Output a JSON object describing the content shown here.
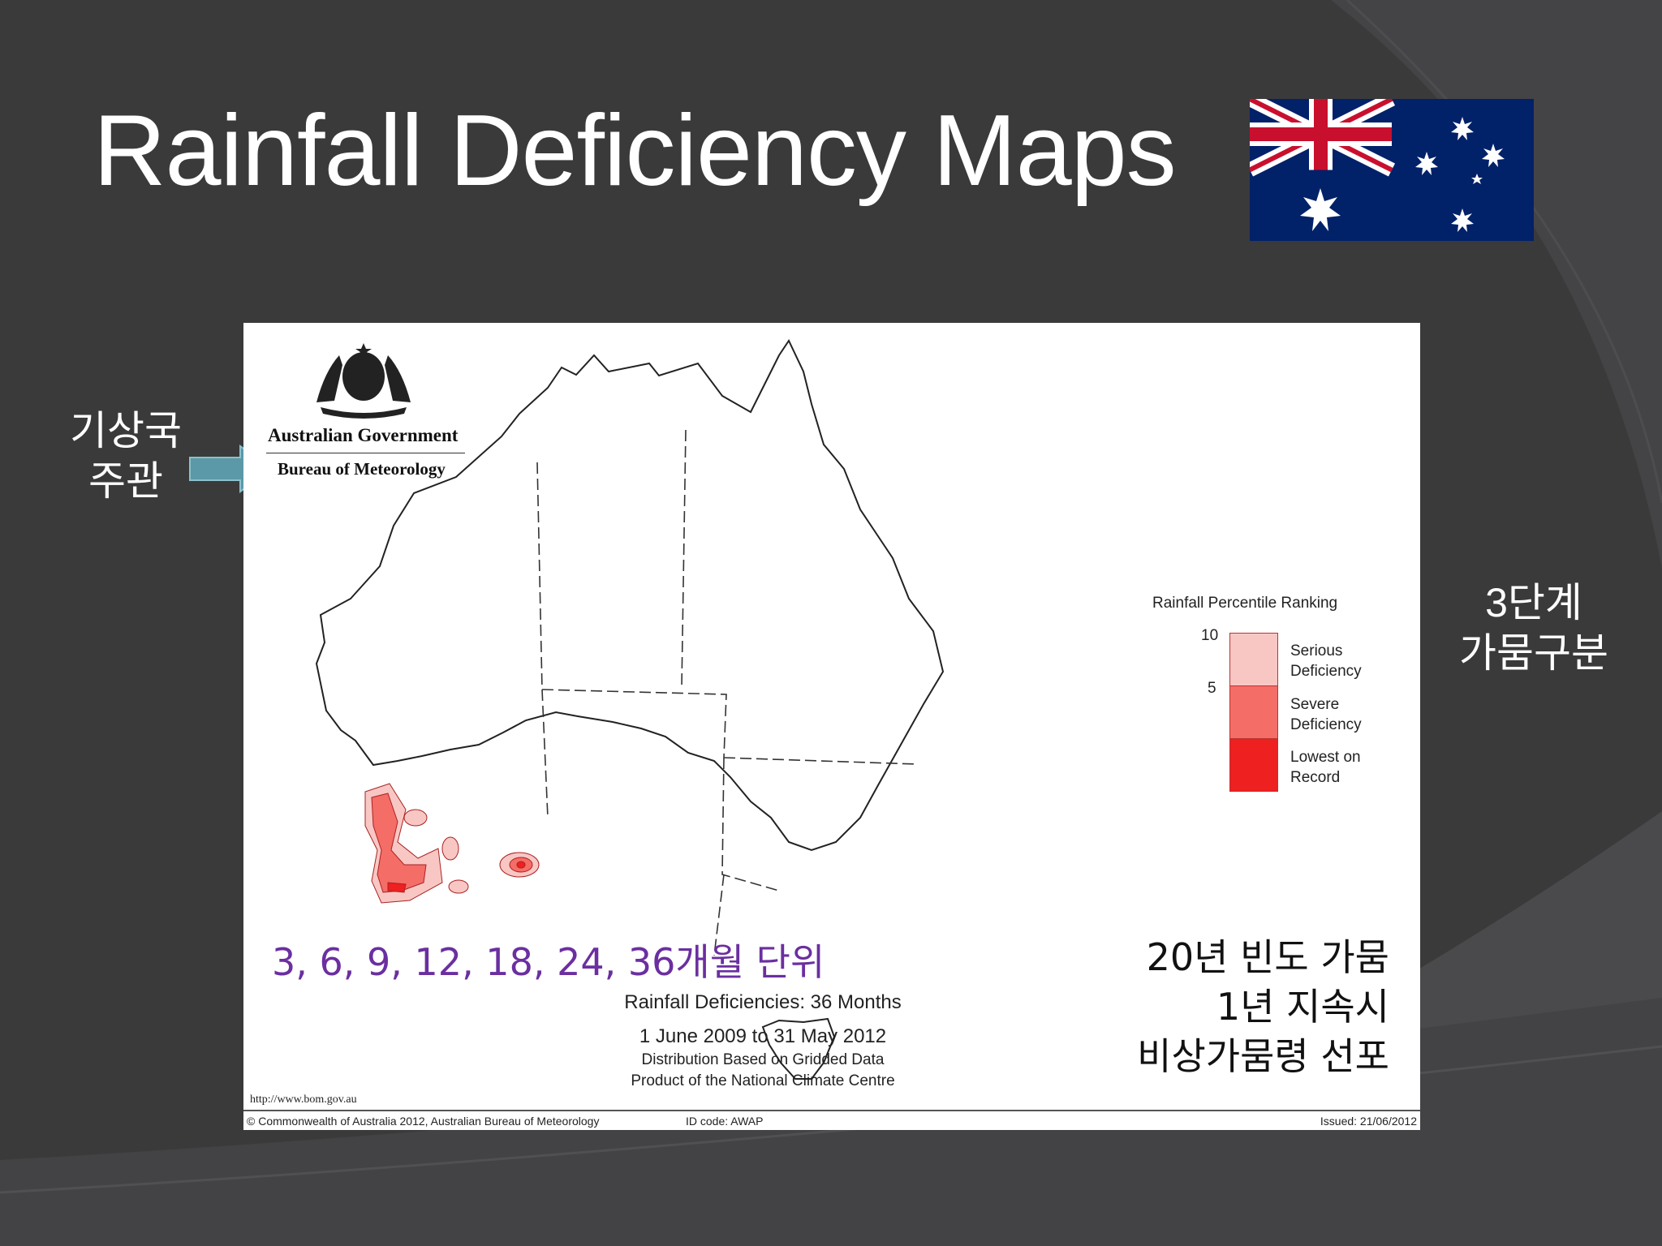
{
  "slide": {
    "title": "Rainfall Deficiency Maps",
    "note_left": [
      "기상국",
      "주관"
    ],
    "note_right": [
      "3단계",
      "가뭄구분"
    ]
  },
  "map": {
    "gov_line1": "Australian Government",
    "gov_line2": "Bureau of Meteorology",
    "legend": {
      "title": "Rainfall Percentile Ranking",
      "tick_10": "10",
      "tick_5": "5",
      "items": [
        {
          "label": [
            "Serious",
            "Deficiency"
          ],
          "color": "#f8c7c4"
        },
        {
          "label": [
            "Severe",
            "Deficiency"
          ],
          "color": "#f46d66"
        },
        {
          "label": [
            "Lowest on",
            "Record"
          ],
          "color": "#ee2020"
        }
      ]
    },
    "overlay_purple": "3, 6, 9, 12, 18, 24, 36개월 단위",
    "overlay_black": [
      "20년 빈도 가뭄",
      "1년 지속시",
      "비상가뭄령 선포"
    ],
    "caption": [
      "Rainfall Deficiencies: 36 Months",
      "1 June 2009 to 31 May 2012",
      "Distribution Based on Gridded Data",
      "Product of the National Climate Centre"
    ],
    "url": "http://www.bom.gov.au",
    "footer": {
      "copyright": "© Commonwealth of Australia 2012, Australian Bureau of Meteorology",
      "id_code": "ID code: AWAP",
      "issued": "Issued: 21/06/2012"
    }
  }
}
